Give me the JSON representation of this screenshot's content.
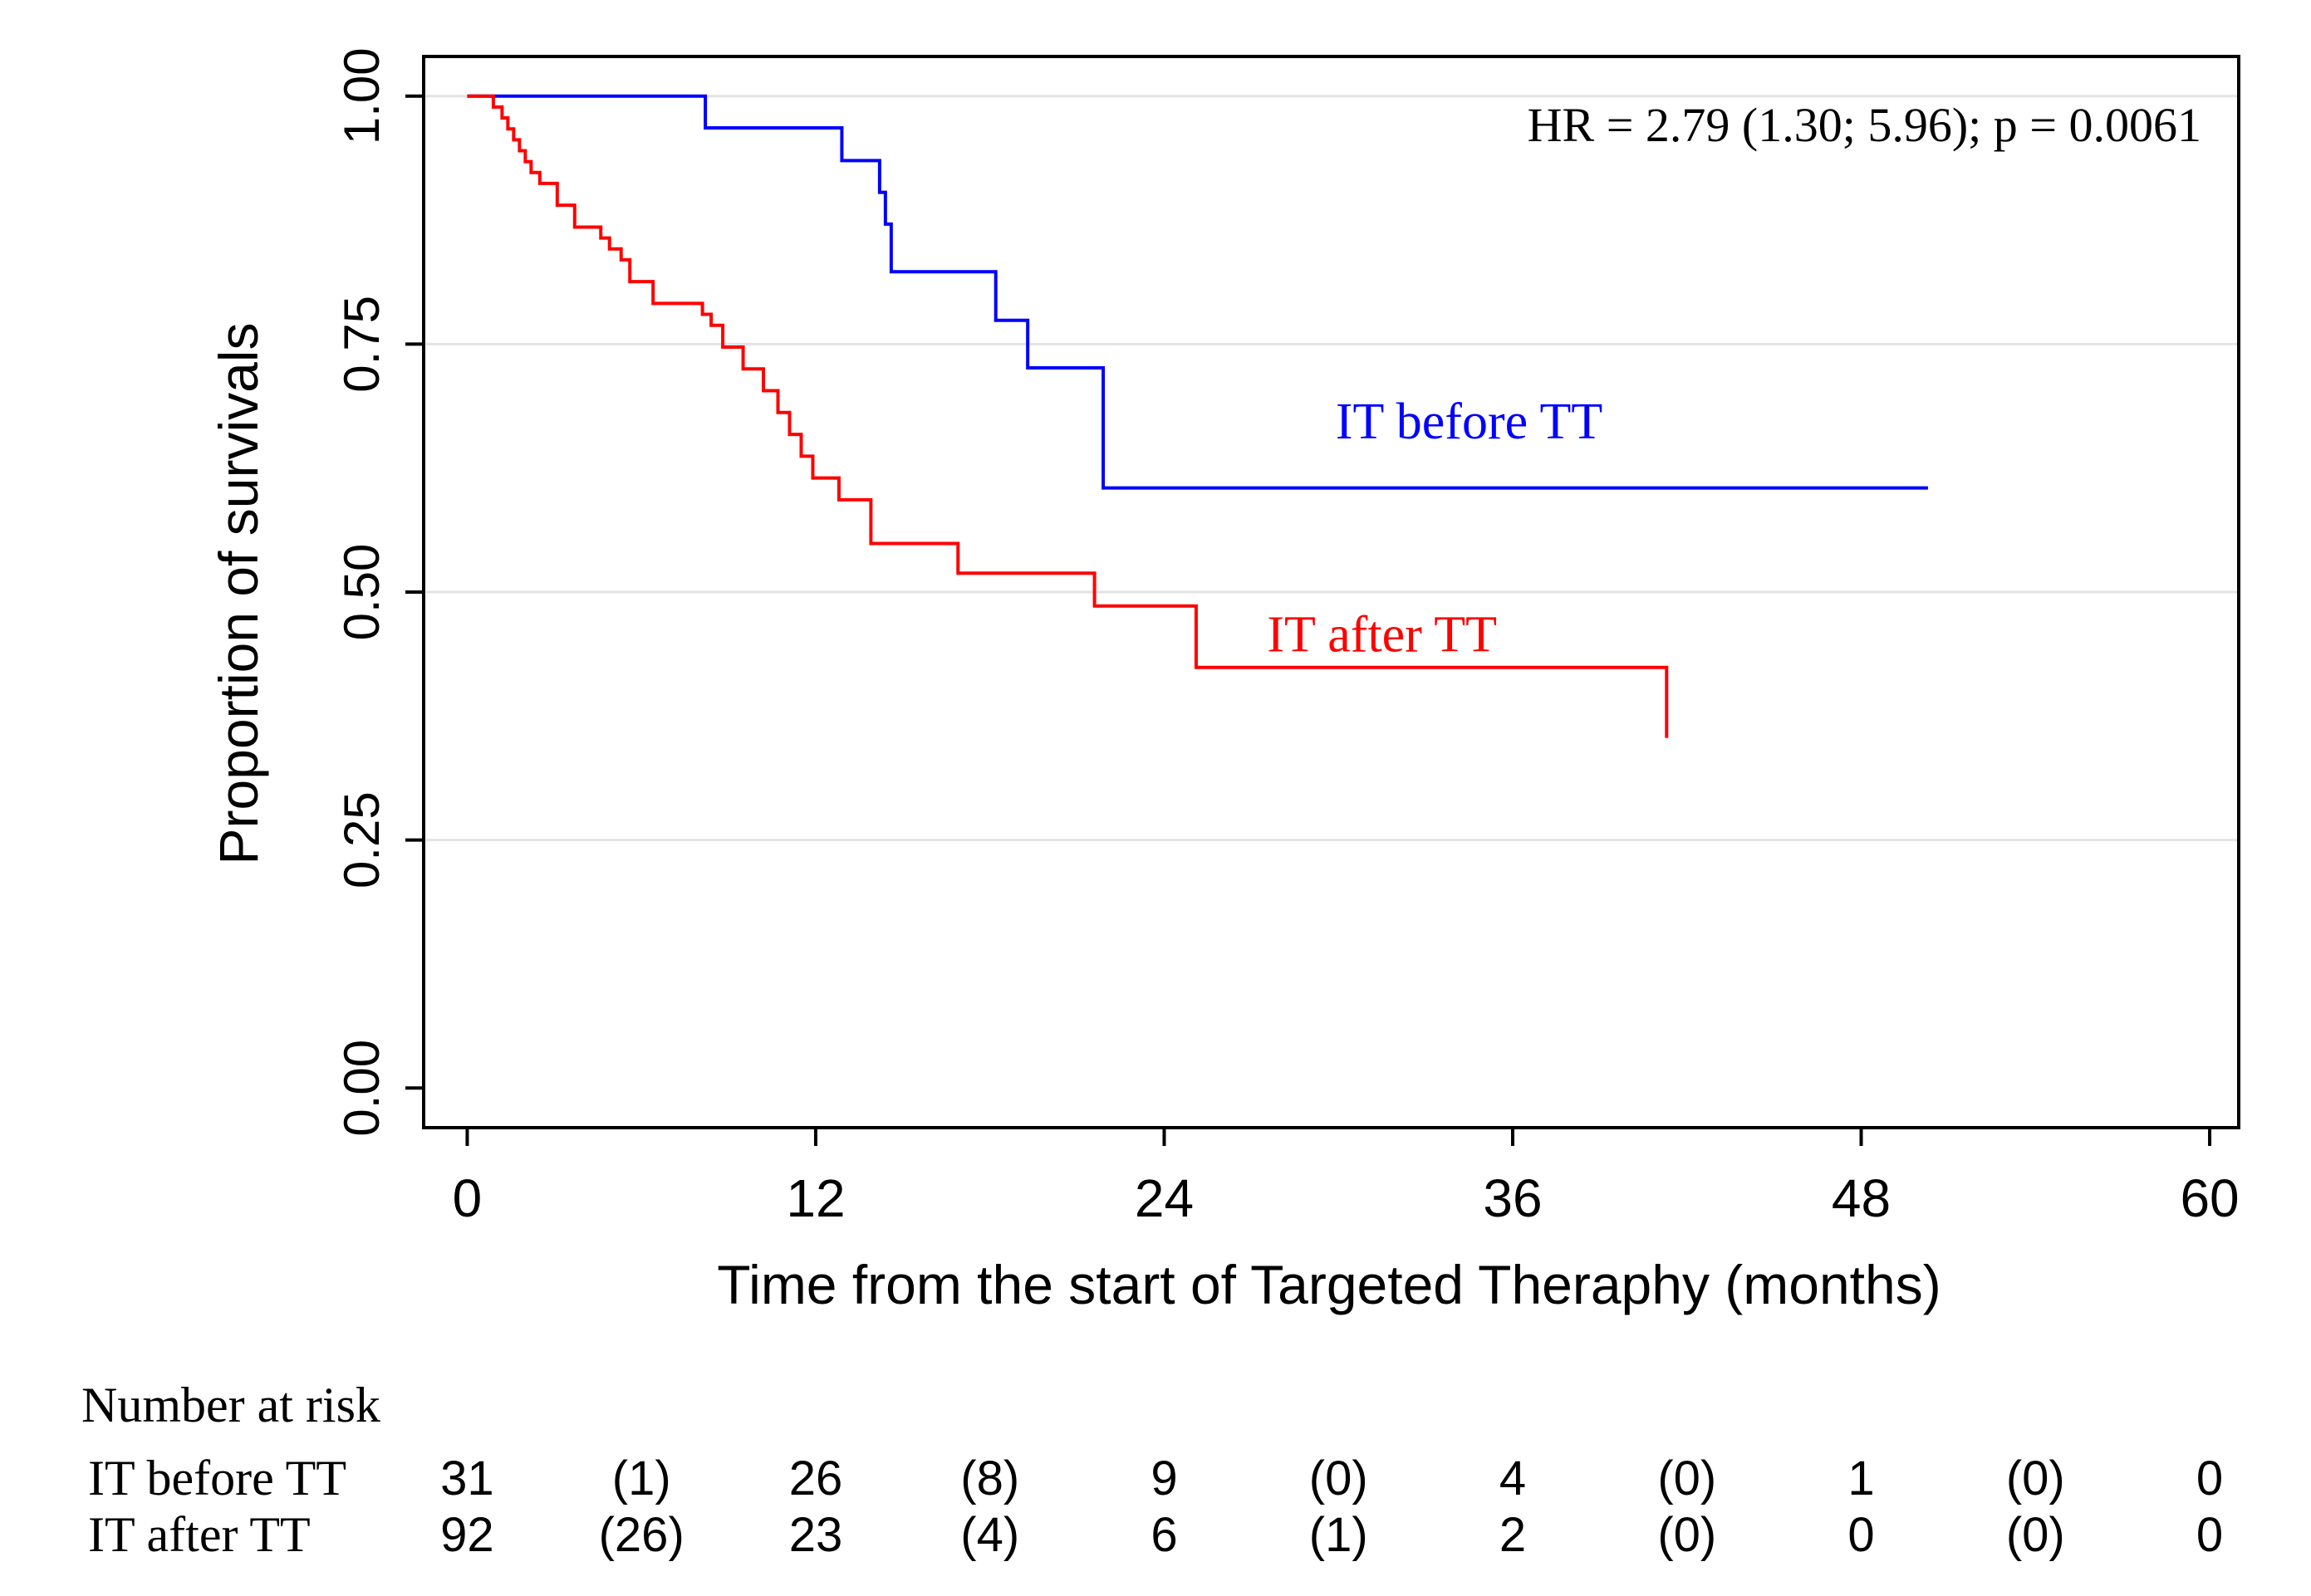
{
  "chart_data": {
    "type": "line",
    "step": true,
    "xlabel": "Time from the start of Targeted Theraphy (months)",
    "ylabel": "Proportion of survivals",
    "xlim": [
      -1.5,
      61
    ],
    "ylim": [
      -0.04,
      1.04
    ],
    "xticks": [
      0,
      12,
      24,
      36,
      48,
      60
    ],
    "yticks": [
      0.0,
      0.25,
      0.5,
      0.75,
      1.0
    ],
    "ytick_labels": [
      "0.00",
      "0.25",
      "0.50",
      "0.75",
      "1.00"
    ],
    "grid": "horizontal",
    "annotation": "HR = 2.79 (1.30; 5.96); p = 0.0061",
    "series": [
      {
        "name": "IT before TT",
        "color": "#0000ff",
        "x": [
          0,
          8.2,
          12.9,
          14.2,
          14.4,
          14.6,
          18.2,
          19.3,
          21.9,
          50.3
        ],
        "y": [
          1.0,
          0.968,
          0.935,
          0.903,
          0.871,
          0.823,
          0.774,
          0.726,
          0.605,
          0.605
        ]
      },
      {
        "name": "IT after TT",
        "color": "#ff0000",
        "x": [
          0,
          0.9,
          1.2,
          1.4,
          1.6,
          1.8,
          2.0,
          2.2,
          2.5,
          3.1,
          3.7,
          4.6,
          4.9,
          5.3,
          5.6,
          6.4,
          8.1,
          8.4,
          8.8,
          9.5,
          10.2,
          10.7,
          11.1,
          11.5,
          11.9,
          12.8,
          13.9,
          16.9,
          21.6,
          25.1,
          41.3
        ],
        "y": [
          1.0,
          0.989,
          0.978,
          0.967,
          0.956,
          0.945,
          0.934,
          0.923,
          0.912,
          0.89,
          0.868,
          0.857,
          0.846,
          0.835,
          0.813,
          0.791,
          0.78,
          0.769,
          0.747,
          0.725,
          0.703,
          0.681,
          0.659,
          0.637,
          0.615,
          0.593,
          0.549,
          0.519,
          0.486,
          0.424,
          0.353
        ]
      }
    ],
    "series_labels": [
      {
        "text": "IT before TT",
        "color": "#0000ff",
        "x": 34.5,
        "y": 0.655
      },
      {
        "text": "IT after TT",
        "color": "#ff0000",
        "x": 31.5,
        "y": 0.44
      }
    ],
    "risk_table": {
      "title": "Number at risk",
      "times": [
        0,
        6,
        12,
        18,
        24,
        30,
        36,
        42,
        48,
        54,
        60
      ],
      "rows": [
        {
          "label": "IT before TT",
          "values": [
            "31",
            "(1)",
            "26",
            "(8)",
            "9",
            "(0)",
            "4",
            "(0)",
            "1",
            "(0)",
            "0"
          ]
        },
        {
          "label": "IT after TT",
          "values": [
            "92",
            "(26)",
            "23",
            "(4)",
            "6",
            "(1)",
            "2",
            "(0)",
            "0",
            "(0)",
            "0"
          ]
        }
      ]
    }
  }
}
